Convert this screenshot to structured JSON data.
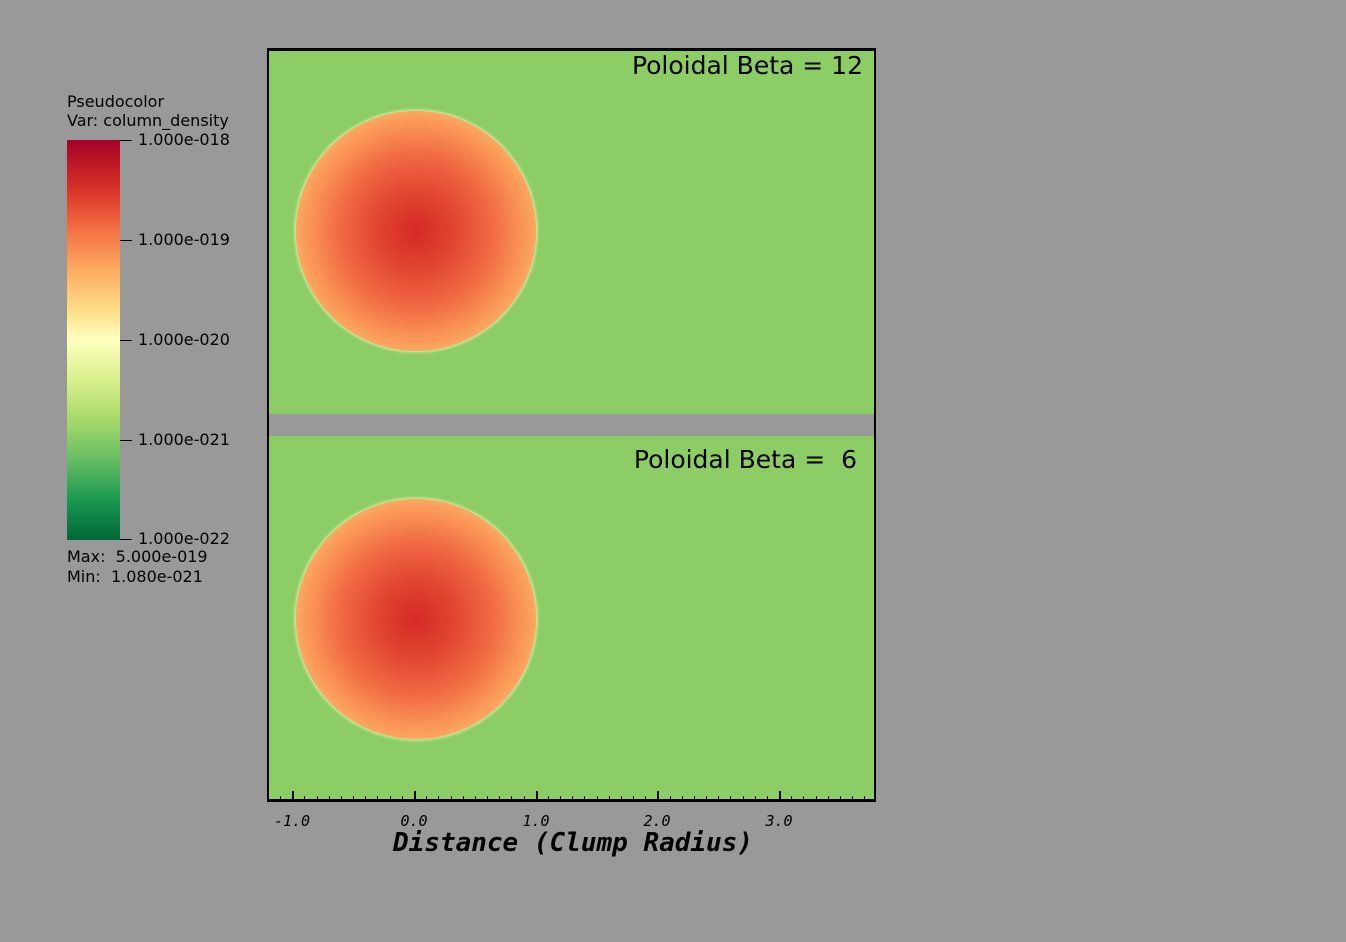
{
  "legend": {
    "title_line1": "Pseudocolor",
    "title_line2": "Var: column_density",
    "tick_labels": [
      "1.000e-018",
      "1.000e-019",
      "1.000e-020",
      "1.000e-021",
      "1.000e-022"
    ],
    "max_text": "Max:  5.000e-019",
    "min_text": "Min:  1.080e-021",
    "colormap": [
      "#a50026",
      "#d73027",
      "#f46d43",
      "#fdae61",
      "#fee08b",
      "#ffffbf",
      "#d9ef8b",
      "#a6d96a",
      "#66bd63",
      "#1a9850",
      "#006837"
    ]
  },
  "panels": {
    "top_label": "Poloidal Beta = 12",
    "bottom_label": "Poloidal Beta =  6",
    "background_color": "#8ccd66"
  },
  "x_axis": {
    "title": "Distance (Clump Radius)",
    "tick_labels": [
      "-1.0",
      "0.0",
      "1.0",
      "2.0",
      "3.0"
    ]
  }
}
